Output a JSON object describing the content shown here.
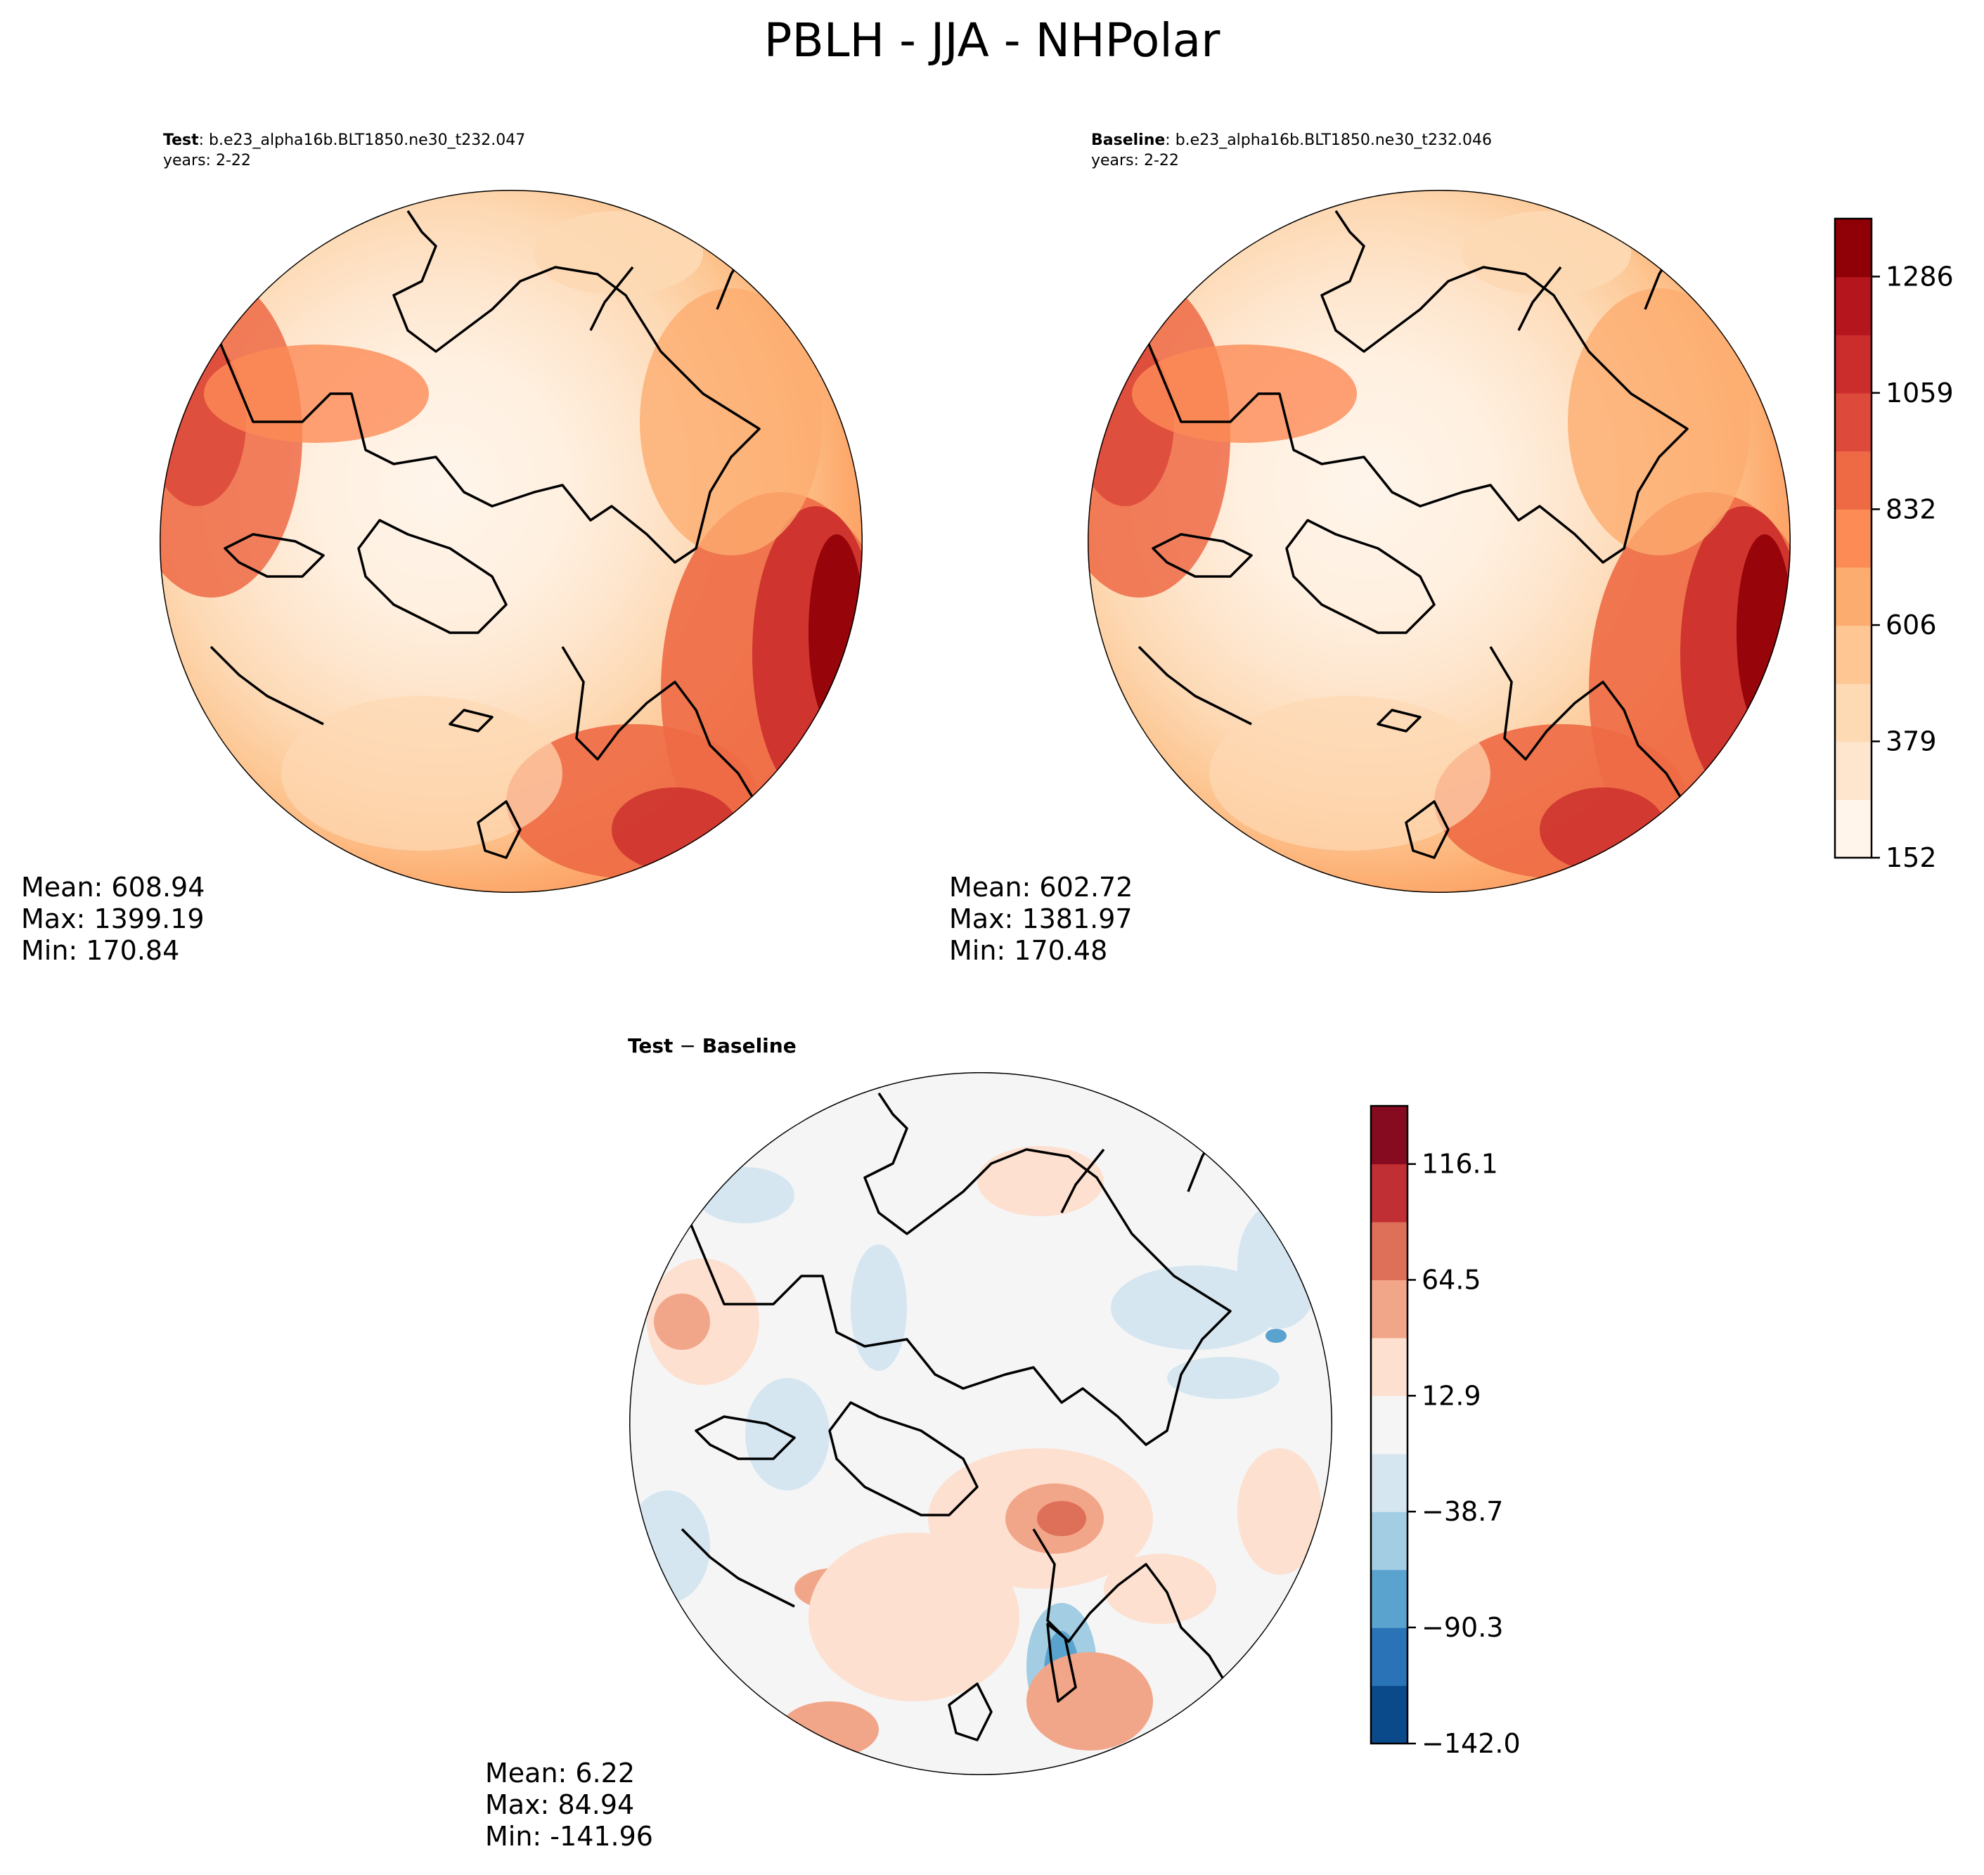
{
  "figure": {
    "title": "PBLH - JJA - NHPolar"
  },
  "colors": {
    "seq": [
      "#fff5eb",
      "#fee6ce",
      "#fdd9b4",
      "#fdc692",
      "#fdac6f",
      "#fc8b56",
      "#ee6a45",
      "#dd4a3b",
      "#cb2d2c",
      "#b5151d",
      "#900007"
    ],
    "div": [
      "#0b4a8a",
      "#2973b6",
      "#5ba3cf",
      "#a2cde2",
      "#d5e6f1",
      "#f5f5f5",
      "#fde0d0",
      "#f2a689",
      "#de6f58",
      "#bf2f34",
      "#870b20"
    ]
  },
  "chart_data": [
    {
      "type": "heatmap",
      "panel": "test",
      "title_bold": "Test",
      "title_rest": ": b.e23_alpha16b.BLT1850.ne30_t232.047",
      "years": "years: 2-22",
      "stats": {
        "mean": "Mean: 608.94",
        "max": "Max: 1399.19",
        "min": "Min: 170.84"
      },
      "projection": "North Polar Stereographic",
      "colorbar": "shared"
    },
    {
      "type": "heatmap",
      "panel": "baseline",
      "title_bold": "Baseline",
      "title_rest": ": b.e23_alpha16b.BLT1850.ne30_t232.046",
      "years": "years: 2-22",
      "stats": {
        "mean": "Mean: 602.72",
        "max": "Max: 1381.97",
        "min": "Min: 170.48"
      },
      "projection": "North Polar Stereographic",
      "colorbar": {
        "vmin": 152,
        "vmax": 1399,
        "levels": 11,
        "ticks": [
          152,
          379,
          606,
          832,
          1059,
          1286
        ],
        "tick_labels": [
          "152",
          "379",
          "606",
          "832",
          "1059",
          "1286"
        ],
        "cmap": "OrRd-like (light cream to dark red)"
      }
    },
    {
      "type": "heatmap",
      "panel": "difference",
      "title": "Test − Baseline",
      "title_bold": "Test",
      "title_op": " − ",
      "title_bold2": "Baseline",
      "stats": {
        "mean": "Mean:  6.22",
        "max": "Max: 84.94",
        "min": "Min: -141.96"
      },
      "projection": "North Polar Stereographic",
      "colorbar": {
        "vmin": -142.0,
        "vmax": 142.0,
        "levels": 11,
        "ticks": [
          -142.0,
          -90.3,
          -38.7,
          12.9,
          64.5,
          116.1
        ],
        "tick_labels": [
          "−142.0",
          "−90.3",
          "−38.7",
          "12.9",
          "64.5",
          "116.1"
        ],
        "cmap": "RdBu_r (blue negative, red positive)"
      }
    }
  ]
}
